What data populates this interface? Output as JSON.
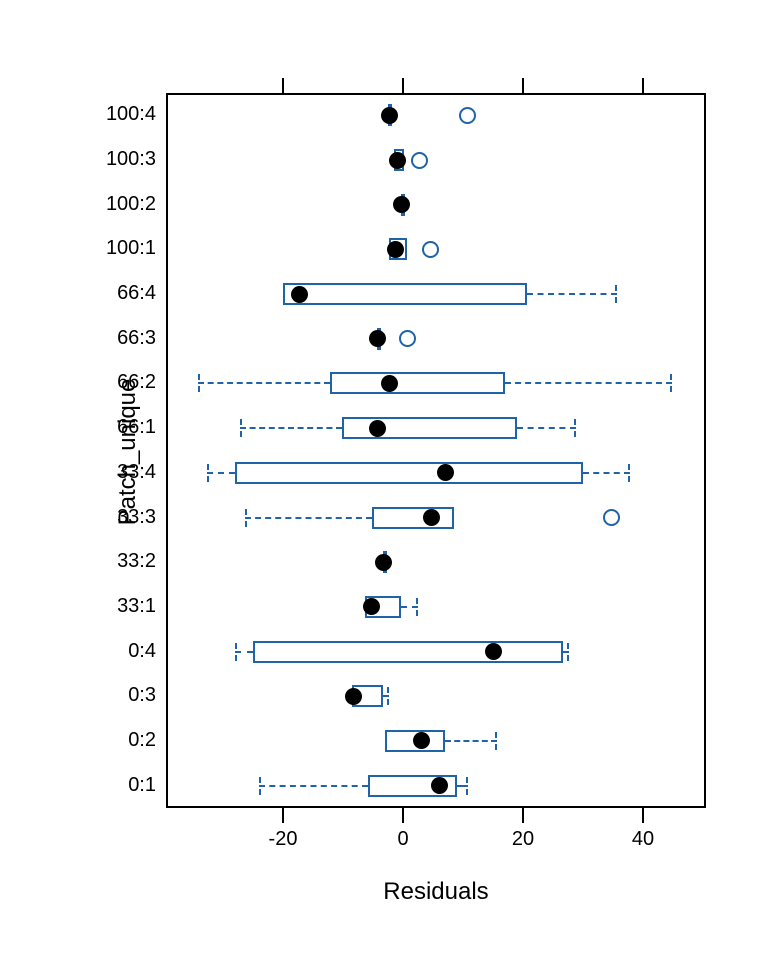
{
  "chart_data": {
    "type": "boxplot",
    "orientation": "horizontal",
    "xlabel": "Residuals",
    "ylabel": "Patch_unique",
    "x_ticks": [
      -20,
      0,
      20,
      40
    ],
    "xlim": [
      -39.5,
      50.5
    ],
    "grid": false,
    "colors": {
      "box": "#1f63a8",
      "median": "#000000",
      "axis": "#000000"
    },
    "rows": [
      {
        "label": "100:4",
        "lo": -2.5,
        "q1": -2.5,
        "med": -2.3,
        "q3": -2.1,
        "hi": -2.1,
        "outliers": [
          10.7
        ]
      },
      {
        "label": "100:3",
        "lo": -1.5,
        "q1": -1.5,
        "med": -1.0,
        "q3": 0.2,
        "hi": 0.2,
        "outliers": [
          2.8
        ]
      },
      {
        "label": "100:2",
        "lo": -0.3,
        "q1": -0.3,
        "med": -0.2,
        "q3": -0.1,
        "hi": -0.1,
        "outliers": []
      },
      {
        "label": "100:1",
        "lo": -2.3,
        "q1": -2.3,
        "med": -1.3,
        "q3": 0.7,
        "hi": 0.7,
        "outliers": [
          4.5
        ]
      },
      {
        "label": "66:4",
        "lo": -20.0,
        "q1": -20.0,
        "med": -17.2,
        "q3": 20.7,
        "hi": 35.6,
        "outliers": []
      },
      {
        "label": "66:3",
        "lo": -4.4,
        "q1": -4.4,
        "med": -4.3,
        "q3": -4.2,
        "hi": -4.2,
        "outliers": [
          0.7
        ]
      },
      {
        "label": "66:2",
        "lo": -34.2,
        "q1": -12.2,
        "med": -2.2,
        "q3": 17.0,
        "hi": 44.8,
        "outliers": []
      },
      {
        "label": "66:1",
        "lo": -27.2,
        "q1": -10.2,
        "med": -4.2,
        "q3": 19.0,
        "hi": 28.8,
        "outliers": []
      },
      {
        "label": "33:4",
        "lo": -32.7,
        "q1": -28.0,
        "med": 7.0,
        "q3": 30.0,
        "hi": 37.8,
        "outliers": []
      },
      {
        "label": "33:3",
        "lo": -26.3,
        "q1": -5.2,
        "med": 4.7,
        "q3": 8.5,
        "hi": 8.5,
        "outliers": [
          34.7
        ]
      },
      {
        "label": "33:2",
        "lo": -3.3,
        "q1": -3.3,
        "med": -3.2,
        "q3": -3.1,
        "hi": -3.1,
        "outliers": []
      },
      {
        "label": "33:1",
        "lo": -6.3,
        "q1": -6.3,
        "med": -5.3,
        "q3": -0.3,
        "hi": 2.5,
        "outliers": []
      },
      {
        "label": "0:4",
        "lo": -28.0,
        "q1": -25.0,
        "med": 15.0,
        "q3": 26.7,
        "hi": 27.7,
        "outliers": []
      },
      {
        "label": "0:3",
        "lo": -8.5,
        "q1": -8.5,
        "med": -8.3,
        "q3": -3.3,
        "hi": -2.3,
        "outliers": []
      },
      {
        "label": "0:2",
        "lo": -3.0,
        "q1": -3.0,
        "med": 3.0,
        "q3": 7.0,
        "hi": 15.7,
        "outliers": []
      },
      {
        "label": "0:1",
        "lo": -24.0,
        "q1": -5.8,
        "med": 6.0,
        "q3": 9.0,
        "hi": 10.8,
        "outliers": []
      }
    ]
  }
}
